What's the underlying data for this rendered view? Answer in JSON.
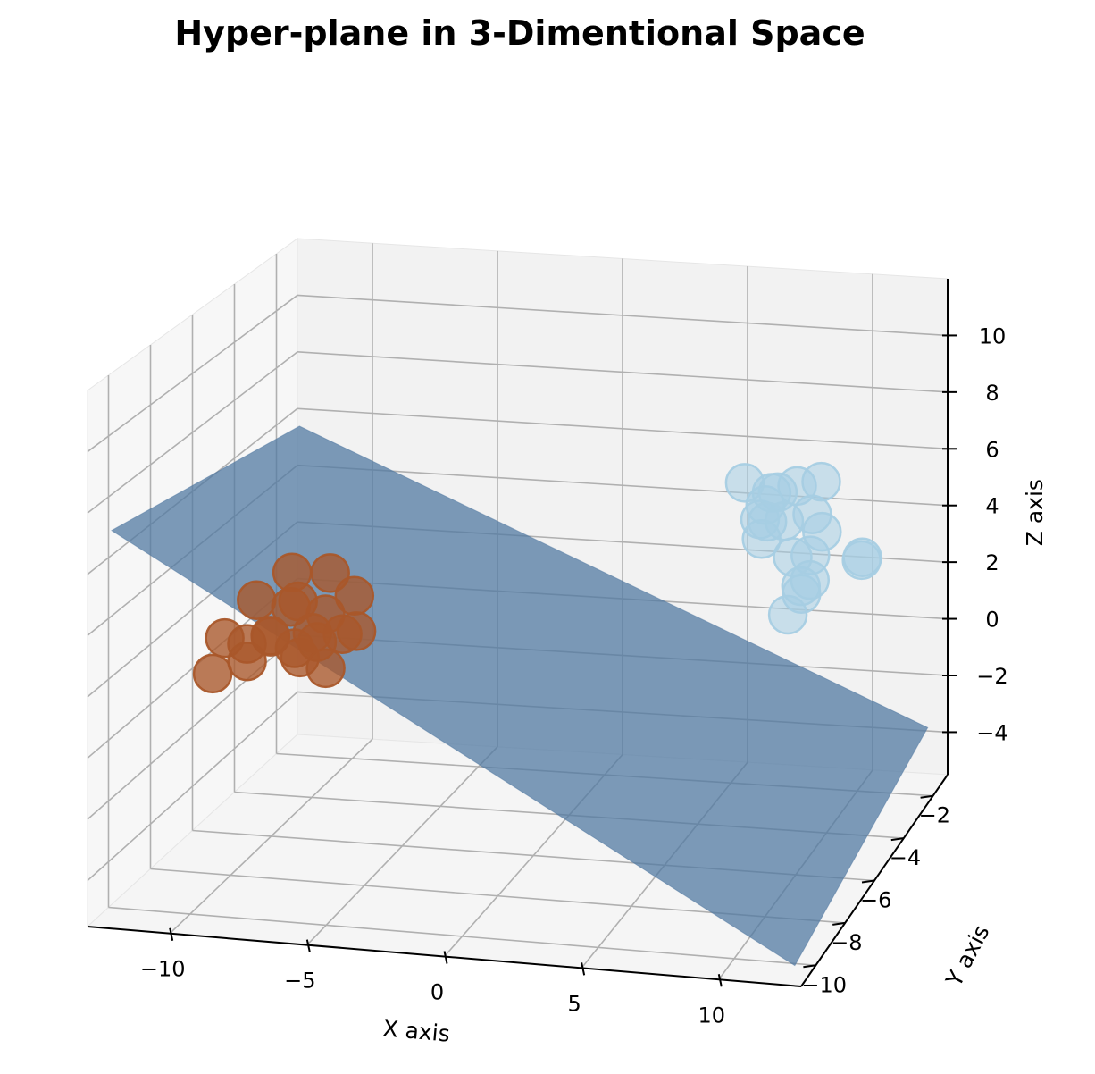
{
  "chart_data": {
    "type": "scatter",
    "title": "Hyper-plane in 3-Dimentional Space",
    "xlabel": "X axis",
    "ylabel": "Y axis",
    "zlabel": "Z axis",
    "xlim": [
      -13,
      13
    ],
    "ylim": [
      -11,
      -1
    ],
    "zlim": [
      -5.5,
      12
    ],
    "x_ticks": [
      -10,
      -5,
      0,
      5,
      10
    ],
    "y_ticks": [
      -2,
      -4,
      -6,
      -8,
      -10
    ],
    "z_ticks": [
      10,
      8,
      6,
      4,
      2,
      0,
      -2,
      -4
    ],
    "grid": true,
    "hyperplane": {
      "color": "#4f78a1",
      "x_range": [
        -12.5,
        12.5
      ],
      "y_range": [
        -10.5,
        -1.5
      ],
      "z_at_corners": {
        "x_min_y_min": 7.2,
        "x_min_y_max": 5.7,
        "x_max_y_min": -5.2,
        "x_max_y_max": -3.5
      }
    },
    "series": [
      {
        "color": "#a9572a",
        "points": [
          [
            -11.3,
            -6.6,
            1.5
          ],
          [
            -11.6,
            -6.8,
            0.4
          ],
          [
            -11.0,
            -5.9,
            0.9
          ],
          [
            -10.4,
            -6.2,
            2.6
          ],
          [
            -10.1,
            -5.9,
            1.2
          ],
          [
            -9.8,
            -6.3,
            1.5
          ],
          [
            -10.3,
            -6.8,
            0.9
          ],
          [
            -9.4,
            -5.8,
            2.2
          ],
          [
            -8.9,
            -6.1,
            2.6
          ],
          [
            -8.6,
            -6.4,
            0.9
          ],
          [
            -8.2,
            -6.3,
            1.7
          ],
          [
            -8.0,
            -5.9,
            2.1
          ],
          [
            -7.8,
            -6.6,
            1.6
          ],
          [
            -7.2,
            -6.1,
            1.6
          ],
          [
            -7.4,
            -6.7,
            0.8
          ],
          [
            -6.6,
            -6.2,
            1.8
          ],
          [
            -6.9,
            -5.9,
            2.8
          ],
          [
            -7.6,
            -6.2,
            3.7
          ],
          [
            -9.2,
            -6.0,
            3.5
          ],
          [
            -8.8,
            -6.4,
            1.2
          ]
        ]
      },
      {
        "color": "#a6cee3",
        "points": [
          [
            8.0,
            -5.9,
            7.6
          ],
          [
            8.4,
            -5.6,
            6.2
          ],
          [
            8.7,
            -6.0,
            5.8
          ],
          [
            8.9,
            -5.7,
            7.2
          ],
          [
            9.1,
            -6.3,
            6.6
          ],
          [
            9.5,
            -5.9,
            6.4
          ],
          [
            9.7,
            -5.4,
            7.3
          ],
          [
            10.0,
            -6.2,
            5.4
          ],
          [
            10.2,
            -6.0,
            4.3
          ],
          [
            10.4,
            -5.6,
            6.5
          ],
          [
            10.5,
            -5.9,
            5.3
          ],
          [
            10.6,
            -6.1,
            4.6
          ],
          [
            10.1,
            -5.8,
            3.9
          ],
          [
            9.7,
            -6.0,
            3.3
          ],
          [
            10.8,
            -5.7,
            7.7
          ],
          [
            9.2,
            -5.8,
            7.3
          ],
          [
            8.6,
            -5.6,
            6.7
          ],
          [
            12.4,
            -5.8,
            5.2
          ],
          [
            12.6,
            -6.1,
            5.5
          ],
          [
            11.0,
            -6.0,
            6.2
          ]
        ]
      }
    ]
  }
}
